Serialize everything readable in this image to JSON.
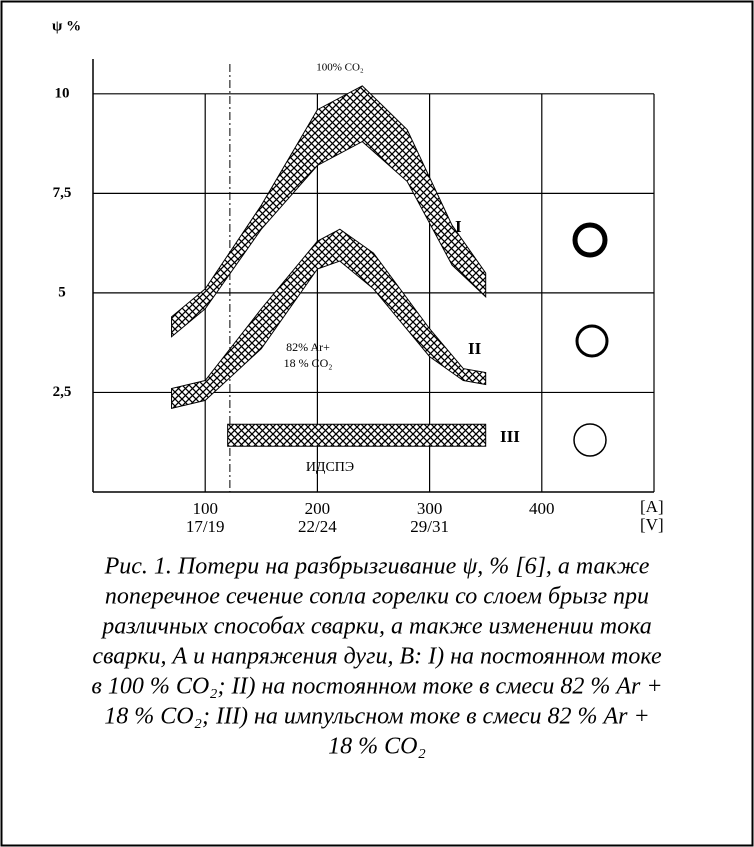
{
  "chart_data": {
    "type": "band",
    "y_label": "ψ %",
    "xlim": [
      0,
      500
    ],
    "ylim": [
      0,
      11
    ],
    "xticks": [
      100,
      200,
      300,
      400
    ],
    "voltage_labels": [
      "17/19",
      "22/24",
      "29/31"
    ],
    "x_unit_labels": [
      "[A]",
      "[V]"
    ],
    "yticks": [
      {
        "value": 2.5,
        "label": "2,5"
      },
      5,
      {
        "value": 7.5,
        "label": "7,5"
      },
      10
    ],
    "grid": true,
    "reference_x": 122,
    "series": [
      {
        "name": "I",
        "color": "#000000",
        "x": [
          70,
          100,
          150,
          200,
          240,
          280,
          320,
          350
        ],
        "lower": [
          3.9,
          4.6,
          6.6,
          8.2,
          8.8,
          7.8,
          5.7,
          4.9
        ],
        "upper": [
          4.4,
          5.1,
          7.2,
          9.6,
          10.2,
          9.1,
          6.7,
          5.5
        ]
      },
      {
        "name": "II",
        "color": "#000000",
        "x": [
          70,
          100,
          150,
          200,
          220,
          250,
          300,
          330,
          350
        ],
        "lower": [
          2.1,
          2.3,
          3.6,
          5.6,
          5.8,
          5.1,
          3.4,
          2.8,
          2.7
        ],
        "upper": [
          2.6,
          2.8,
          4.6,
          6.3,
          6.6,
          6.0,
          4.1,
          3.1,
          3.0
        ]
      },
      {
        "name": "III",
        "color": "#000000",
        "x": [
          120,
          350
        ],
        "lower": [
          1.15,
          1.15
        ],
        "upper": [
          1.7,
          1.7
        ]
      }
    ],
    "annotations": [
      "100% CO₂",
      "82% Ar+",
      "18 % CO₂",
      "ИДСПЭ"
    ]
  },
  "caption": {
    "lines": [
      "Рис. 1. Потери на разбрызгивание ψ, % [6], а также",
      "поперечное сечение сопла  горелки со слоем брызг при",
      "различных способах сварки, а также изменении тока",
      "сварки, А и напряжения дуги, В: I) на постоянном токе",
      "в 100 % CO₂; II) на постоянном токе в смеси 82 % Ar +",
      "18 % CO₂; III) на импульсном токе в смеси 82 % Ar +",
      "18 % CO₂"
    ]
  }
}
